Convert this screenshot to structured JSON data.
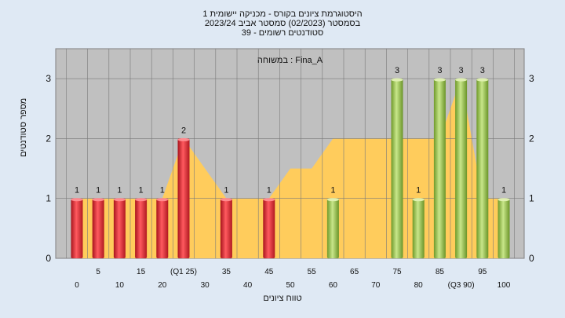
{
  "header": {
    "title_line1": "היסטוגרמת ציונים בקורס - מכניקה יישומית 1",
    "title_line2": "בסמסטר (02/2023) סמסטר אביב 2023/24",
    "title_line3": "סטודנטים רשומים - 39"
  },
  "chart_data": {
    "type": "bar",
    "annotation": "Fina_A : במשוחה",
    "xlabel": "טווח ציונים",
    "ylabel": "מספר סטודנטים",
    "ylim": [
      0,
      3.5
    ],
    "yticks": [
      0,
      1,
      2,
      3
    ],
    "xticks_bottom": [
      "0",
      "10",
      "20",
      "30",
      "40",
      "50",
      "60",
      "70",
      "80",
      "(Q3 90)",
      "100"
    ],
    "xticks_top": [
      "5",
      "15",
      "(Q1 25)",
      "35",
      "45",
      "55",
      "65",
      "75",
      "85",
      "95"
    ],
    "grid": true,
    "bars": [
      {
        "x": 0,
        "value": 1,
        "label": "1",
        "color": "red"
      },
      {
        "x": 5,
        "value": 1,
        "label": "1",
        "color": "red"
      },
      {
        "x": 10,
        "value": 1,
        "label": "1",
        "color": "red"
      },
      {
        "x": 15,
        "value": 1,
        "label": "1",
        "color": "red"
      },
      {
        "x": 20,
        "value": 1,
        "label": "1",
        "color": "red"
      },
      {
        "x": 25,
        "value": 2,
        "label": "2",
        "color": "red"
      },
      {
        "x": 35,
        "value": 1,
        "label": "1",
        "color": "red"
      },
      {
        "x": 45,
        "value": 1,
        "label": "1",
        "color": "red"
      },
      {
        "x": 60,
        "value": 1,
        "label": "1",
        "color": "green"
      },
      {
        "x": 75,
        "value": 3,
        "label": "3",
        "color": "green"
      },
      {
        "x": 80,
        "value": 1,
        "label": "1",
        "color": "green"
      },
      {
        "x": 85,
        "value": 3,
        "label": "3",
        "color": "green"
      },
      {
        "x": 90,
        "value": 3,
        "label": "3",
        "color": "green"
      },
      {
        "x": 95,
        "value": 3,
        "label": "3",
        "color": "green"
      },
      {
        "x": 100,
        "value": 1,
        "label": "1",
        "color": "green"
      }
    ],
    "area": {
      "x": [
        0,
        5,
        10,
        15,
        20,
        25,
        30,
        35,
        40,
        45,
        50,
        55,
        60,
        65,
        70,
        75,
        80,
        85,
        90,
        95,
        100
      ],
      "y": [
        1,
        1,
        1,
        1,
        1,
        2,
        1.5,
        1,
        1,
        1,
        1.5,
        1.5,
        2,
        2,
        2,
        2,
        2,
        2,
        3,
        1,
        1
      ]
    },
    "colors": {
      "plot_bg": "#c0c0c0",
      "area": "#ffcc5c",
      "red_bar": "#e8323c",
      "green_bar": "#9ccc50",
      "page_bg": "#dfe9f4"
    }
  }
}
